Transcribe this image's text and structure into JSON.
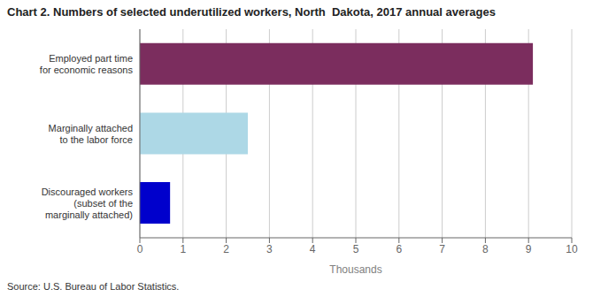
{
  "chart_data": {
    "type": "bar",
    "orientation": "horizontal",
    "title": "Chart 2. Numbers of selected underutilized workers, North  Dakota, 2017 annual averages",
    "categories": [
      "Discouraged workers\n(subset of the\nmarginally attached)",
      "Marginally attached\nto the labor force",
      "Employed part time\nfor economic reasons"
    ],
    "values": [
      0.7,
      2.5,
      9.1
    ],
    "colors": [
      "#0000cc",
      "#add8e6",
      "#7b2d5e"
    ],
    "xlim": [
      0,
      10
    ],
    "xticks": [
      0,
      1,
      2,
      3,
      4,
      5,
      6,
      7,
      8,
      9,
      10
    ],
    "xlabel": "Thousands",
    "source": "Source: U.S. Bureau of Labor Statistics.",
    "grid": true
  }
}
